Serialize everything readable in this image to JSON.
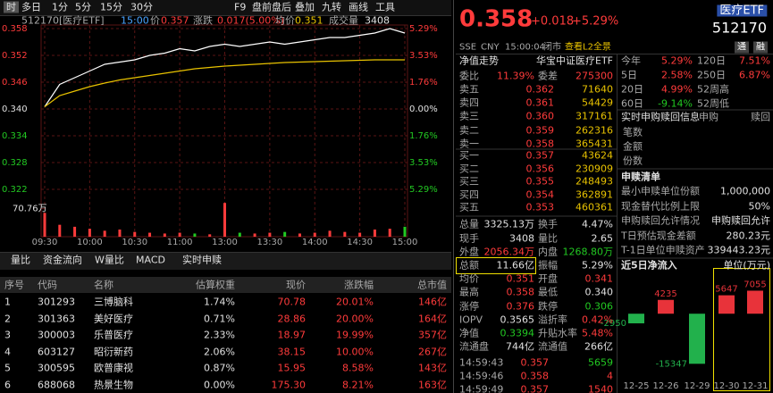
{
  "toolbar": [
    "时",
    "多日",
    "1分",
    "5分",
    "15分",
    "30分",
    "F9",
    "盘前盘后",
    "叠加",
    "九转",
    "画线",
    "工具"
  ],
  "info": {
    "code": "512170[医疗ETF]",
    "time": "15:00",
    "price_label": "价",
    "price": "0.357",
    "change_label": "涨跌",
    "change": "0.017(5.00%)",
    "avg_label": "均价",
    "avg": "0.351",
    "volume_label": "成交量",
    "volume": "3408"
  },
  "tabs": [
    "量比",
    "资金流向",
    "W量比",
    "MACD",
    "实时申赎"
  ],
  "table": {
    "header": [
      "序号",
      "代码",
      "名称",
      "估算权重",
      "现价",
      "涨跌幅",
      "总市值"
    ],
    "rows": [
      [
        "1",
        "301293",
        "三博脑科",
        "1.74%",
        "70.78",
        "20.01%",
        "146亿"
      ],
      [
        "2",
        "301363",
        "美好医疗",
        "0.71%",
        "28.86",
        "20.00%",
        "164亿"
      ],
      [
        "3",
        "300003",
        "乐普医疗",
        "2.33%",
        "18.97",
        "19.99%",
        "357亿"
      ],
      [
        "4",
        "603127",
        "昭衍新药",
        "2.06%",
        "38.15",
        "10.00%",
        "267亿"
      ],
      [
        "5",
        "300595",
        "欧普康视",
        "0.87%",
        "15.95",
        "8.58%",
        "143亿"
      ],
      [
        "6",
        "688068",
        "热景生物",
        "0.00%",
        "175.30",
        "8.21%",
        "163亿"
      ]
    ]
  },
  "quote": {
    "price": "0.358",
    "change": "+0.018",
    "pct": "+5.29%",
    "name": "医疗ETF",
    "code": "512170",
    "exchange": "SSE",
    "currency": "CNY",
    "time": "15:00:04",
    "status": "闭市",
    "l2": "查看L2全景",
    "badges": [
      "通",
      "融"
    ]
  },
  "book": {
    "nav_label": "净值走势",
    "fund_name": "华宝中证医疗ETF",
    "ratio": [
      "委比",
      "11.39%",
      "委差",
      "275300"
    ],
    "asks": [
      [
        "卖五",
        "0.362",
        "71640"
      ],
      [
        "卖四",
        "0.361",
        "54429"
      ],
      [
        "卖三",
        "0.360",
        "317161"
      ],
      [
        "卖二",
        "0.359",
        "262316"
      ],
      [
        "卖一",
        "0.358",
        "365431"
      ]
    ],
    "bids": [
      [
        "买一",
        "0.357",
        "43624"
      ],
      [
        "买二",
        "0.356",
        "230909"
      ],
      [
        "买三",
        "0.355",
        "248493"
      ],
      [
        "买四",
        "0.354",
        "362891"
      ],
      [
        "买五",
        "0.353",
        "460361"
      ]
    ]
  },
  "stats": [
    [
      "总量",
      "3325.13万",
      "换手",
      "4.47%"
    ],
    [
      "现手",
      "3408",
      "量比",
      "2.65"
    ],
    [
      "外盘",
      "2056.34万",
      "内盘",
      "1268.80万"
    ],
    [
      "总额",
      "11.66亿",
      "振幅",
      "5.29%"
    ],
    [
      "均价",
      "0.351",
      "开盘",
      "0.341"
    ],
    [
      "最高",
      "0.358",
      "最低",
      "0.340"
    ],
    [
      "涨停",
      "0.376",
      "跌停",
      "0.306"
    ],
    [
      "IOPV",
      "0.3565",
      "溢折率",
      "0.42%"
    ],
    [
      "净值",
      "0.3394",
      "升贴水率",
      "5.48%"
    ],
    [
      "流通盘",
      "744亿",
      "流通值",
      "266亿"
    ]
  ],
  "trades": [
    [
      "14:59:43",
      "0.357",
      "5659"
    ],
    [
      "14:59:46",
      "0.358",
      "4"
    ],
    [
      "14:59:49",
      "0.357",
      "1540"
    ]
  ],
  "returns": [
    [
      "今年",
      "5.29%",
      "120日",
      "7.51%"
    ],
    [
      "5日",
      "2.58%",
      "250日",
      "6.87%"
    ],
    [
      "20日",
      "4.99%",
      "52周高"
    ],
    [
      "60日",
      "-9.14%",
      "52周低"
    ]
  ],
  "realtime": {
    "title": "实时申购赎回信息",
    "cols": [
      "申购",
      "赎回"
    ],
    "rows": [
      "笔数",
      "金额",
      "份数"
    ]
  },
  "list": {
    "title": "申赎清单",
    "items": [
      [
        "最小申赎单位份额",
        "1,000,000"
      ],
      [
        "现金替代比例上限",
        "50%"
      ],
      [
        "申购赎回允许情况",
        "申购赎回允许"
      ],
      [
        "T日预估现金差额",
        "280.23元"
      ],
      [
        "T-1日单位申赎资产",
        "339443.23元"
      ]
    ]
  },
  "chart_data": [
    {
      "type": "line",
      "x": [
        0,
        10,
        20,
        30,
        40,
        50,
        60,
        70,
        80,
        90,
        100,
        110,
        120,
        130,
        140,
        150,
        160,
        170,
        180,
        190,
        200,
        210,
        220,
        230,
        240
      ],
      "series": [
        {
          "color": "#ffffff",
          "values": [
            0.3405,
            0.3455,
            0.347,
            0.3485,
            0.35,
            0.3505,
            0.351,
            0.352,
            0.3525,
            0.3535,
            0.353,
            0.354,
            0.3545,
            0.354,
            0.3545,
            0.355,
            0.3545,
            0.355,
            0.3555,
            0.356,
            0.356,
            0.3565,
            0.357,
            0.358,
            0.357
          ]
        },
        {
          "color": "#e8c200",
          "values": [
            0.3405,
            0.343,
            0.344,
            0.345,
            0.3458,
            0.3465,
            0.347,
            0.3475,
            0.348,
            0.3485,
            0.349,
            0.3493,
            0.3496,
            0.3498,
            0.35,
            0.3502,
            0.3504,
            0.3505,
            0.3506,
            0.3507,
            0.3508,
            0.3509,
            0.351,
            0.351,
            0.351
          ]
        }
      ],
      "xlim": [
        0,
        240
      ],
      "xticks": [
        {
          "value": 0,
          "label": "09:30"
        },
        {
          "value": 30,
          "label": "10:00"
        },
        {
          "value": 60,
          "label": "10:30"
        },
        {
          "value": 90,
          "label": "11:00"
        },
        {
          "value": 120,
          "label": "13:00"
        },
        {
          "value": 150,
          "label": "13:30"
        },
        {
          "value": 180,
          "label": "14:00"
        },
        {
          "value": 210,
          "label": "14:30"
        },
        {
          "value": 240,
          "label": "15:00"
        }
      ],
      "ylim": [
        0.3208,
        0.3592
      ],
      "yticks": [
        {
          "value": 0.358,
          "label": "0.358"
        },
        {
          "value": 0.352,
          "label": "0.352"
        },
        {
          "value": 0.346,
          "label": "0.346"
        },
        {
          "value": 0.34,
          "label": "0.340"
        },
        {
          "value": 0.334,
          "label": "0.334"
        },
        {
          "value": 0.328,
          "label": "0.328"
        },
        {
          "value": 0.322,
          "label": "0.322"
        }
      ],
      "y2lim": [
        -5.647,
        5.647
      ],
      "y2ticks": [
        {
          "value": 5.29,
          "label": "5.29%"
        },
        {
          "value": 3.53,
          "label": "3.53%"
        },
        {
          "value": 1.76,
          "label": "1.76%"
        },
        {
          "value": 0,
          "label": "0.00%"
        },
        {
          "value": -1.76,
          "label": "1.76%"
        },
        {
          "value": -3.53,
          "label": "3.53%"
        },
        {
          "value": -5.29,
          "label": "5.29%"
        }
      ],
      "grid": true
    },
    {
      "type": "bar",
      "x": [
        0,
        10,
        20,
        30,
        40,
        50,
        60,
        70,
        80,
        90,
        100,
        110,
        120,
        130,
        140,
        150,
        160,
        170,
        180,
        190,
        200,
        210,
        220,
        230,
        240
      ],
      "values": [
        60,
        30,
        25,
        20,
        15,
        18,
        12,
        10,
        8,
        10,
        8,
        6,
        85,
        10,
        8,
        10,
        12,
        8,
        10,
        15,
        12,
        10,
        18,
        20,
        25
      ],
      "ylim": [
        0,
        90
      ],
      "yticks": [
        {
          "value": 70.76,
          "label": "70.76万"
        }
      ]
    },
    {
      "type": "bar",
      "title": "近5日净流入",
      "ylabel": "单位(万元)",
      "categories": [
        "12-25",
        "12-26",
        "12-29",
        "12-30",
        "12-31"
      ],
      "values": [
        -2950,
        4235,
        -15347,
        5647,
        7055
      ],
      "color": "#e8333a",
      "negative_color": "#22b14c",
      "ylim": [
        -18000,
        8000
      ]
    }
  ]
}
